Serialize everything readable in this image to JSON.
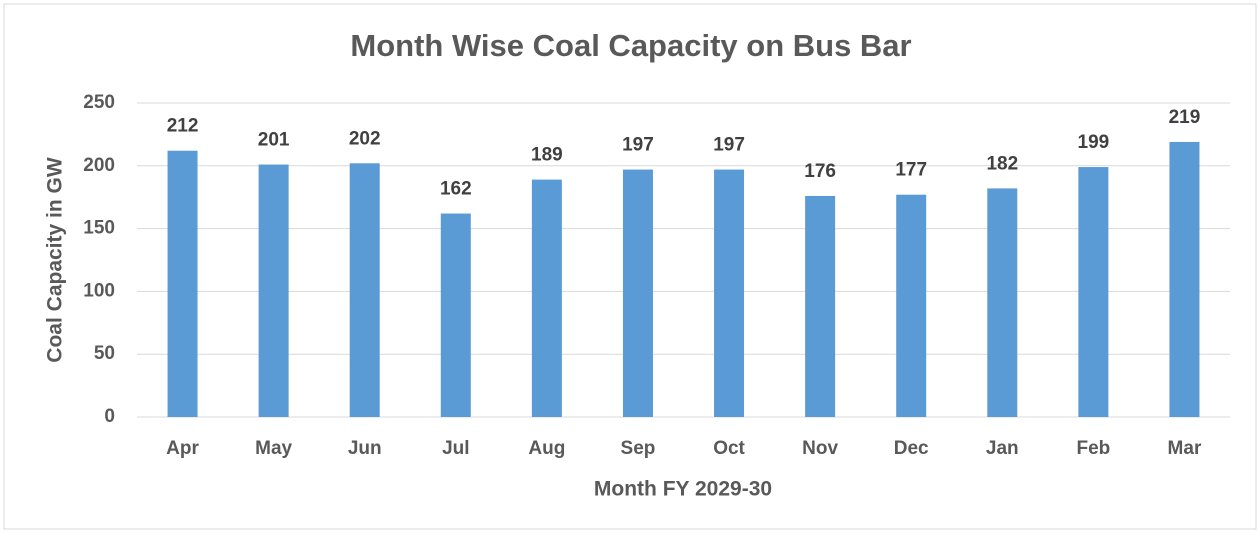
{
  "chart_data": {
    "type": "bar",
    "title": "Month Wise Coal Capacity on Bus Bar",
    "x_label": "Month FY 2029-30",
    "y_label": "Coal Capacity in GW",
    "categories": [
      "Apr",
      "May",
      "Jun",
      "Jul",
      "Aug",
      "Sep",
      "Oct",
      "Nov",
      "Dec",
      "Jan",
      "Feb",
      "Mar"
    ],
    "values": [
      212,
      201,
      202,
      162,
      189,
      197,
      197,
      176,
      177,
      182,
      199,
      219
    ],
    "color": "#5b9bd5",
    "ylim": [
      0,
      250
    ],
    "yticks": [
      0,
      50,
      100,
      150,
      200,
      250
    ],
    "grid": true
  }
}
